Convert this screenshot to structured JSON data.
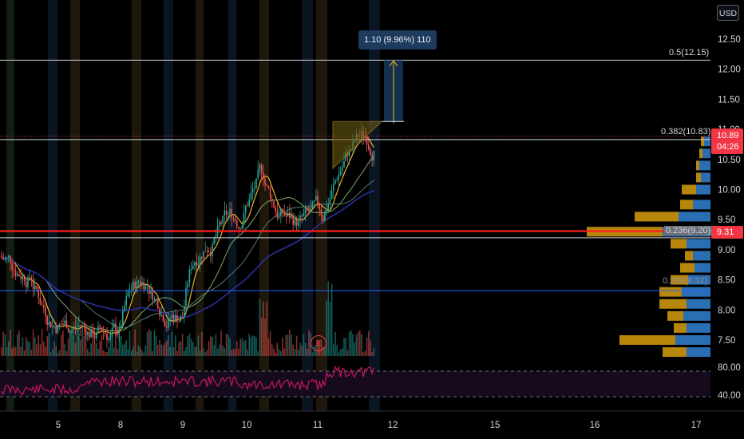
{
  "currency": "USD",
  "price_scale": {
    "ticks": [
      "12.50",
      "12.00",
      "11.50",
      "11.00",
      "10.50",
      "10.00",
      "9.50",
      "9.00",
      "8.50",
      "8.00",
      "7.50"
    ],
    "rsi_ticks": [
      "80.00",
      "40.00"
    ]
  },
  "time_axis": {
    "labels": [
      "5",
      "8",
      "9",
      "10",
      "11",
      "12",
      "15",
      "16",
      "17"
    ]
  },
  "last_price": {
    "value": "10.89",
    "countdown": "04:26"
  },
  "red_line_price": "9.31",
  "measure_tooltip": "1.10 (9.96%) 110",
  "earnings_marker": "E",
  "fib_levels": [
    {
      "label": "0.5(12.15)",
      "price": 12.15
    },
    {
      "label": "0.382(10.83)",
      "price": 10.83
    },
    {
      "label": "0.236(9.20)",
      "price": 9.2
    },
    {
      "label": "0.236(8.32)",
      "price": 8.32
    }
  ],
  "colors": {
    "up": "#26a69a",
    "down": "#ef5350",
    "fib_line": "#d1d4dc",
    "red_line": "#ff1e1e",
    "blue_line": "#2962ff",
    "volume_profile_up": "#2a6fb3",
    "volume_profile_down": "#b8860b",
    "rsi": "#c2185b"
  }
}
